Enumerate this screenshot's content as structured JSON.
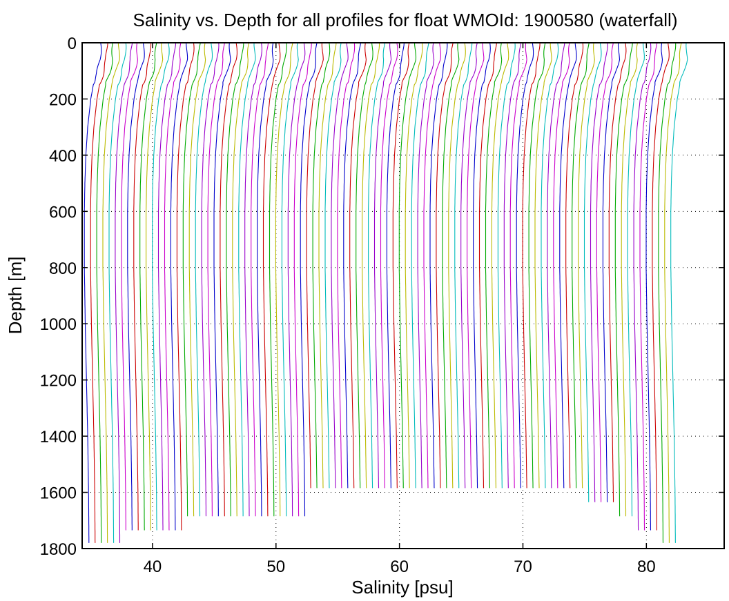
{
  "chart_data": {
    "type": "line",
    "title": "Salinity vs. Depth for all profiles for float WMOId: 1900580 (waterfall)",
    "xlabel": "Salinity [psu]",
    "ylabel": "Depth [m]",
    "xlim": [
      34.3,
      86.3
    ],
    "ylim": [
      0,
      1800
    ],
    "y_reversed": true,
    "x_ticks": [
      40,
      50,
      60,
      70,
      80
    ],
    "y_ticks": [
      0,
      200,
      400,
      600,
      800,
      1000,
      1200,
      1400,
      1600,
      1800
    ],
    "grid": "dotted",
    "waterfall": {
      "profile_count": 96,
      "first_profile_offset_salinity": 34.9,
      "offset_step_salinity": 0.5,
      "color_cycle": [
        "#0000cc",
        "#cc0000",
        "#00aa00",
        "#bbbb00",
        "#00bbbb",
        "#9900cc",
        "#cc00cc"
      ],
      "base_profile": {
        "depth": [
          0,
          60,
          110,
          150,
          200,
          300,
          400,
          500,
          600,
          800,
          1000,
          1200,
          1400,
          1600,
          1780
        ],
        "salinity_anomaly": [
          0.9,
          0.85,
          0.6,
          0.3,
          0.1,
          -0.15,
          -0.3,
          -0.38,
          -0.42,
          -0.42,
          -0.35,
          -0.25,
          -0.15,
          -0.08,
          -0.05
        ]
      },
      "max_depth_groups": [
        {
          "from_profile": 0,
          "to_profile": 5,
          "max_depth": 1780
        },
        {
          "from_profile": 6,
          "to_profile": 15,
          "max_depth": 1735
        },
        {
          "from_profile": 16,
          "to_profile": 35,
          "max_depth": 1685
        },
        {
          "from_profile": 36,
          "to_profile": 80,
          "max_depth": 1585
        },
        {
          "from_profile": 81,
          "to_profile": 85,
          "max_depth": 1635
        },
        {
          "from_profile": 86,
          "to_profile": 88,
          "max_depth": 1685
        },
        {
          "from_profile": 89,
          "to_profile": 92,
          "max_depth": 1735
        },
        {
          "from_profile": 93,
          "to_profile": 95,
          "max_depth": 1780
        }
      ]
    }
  }
}
